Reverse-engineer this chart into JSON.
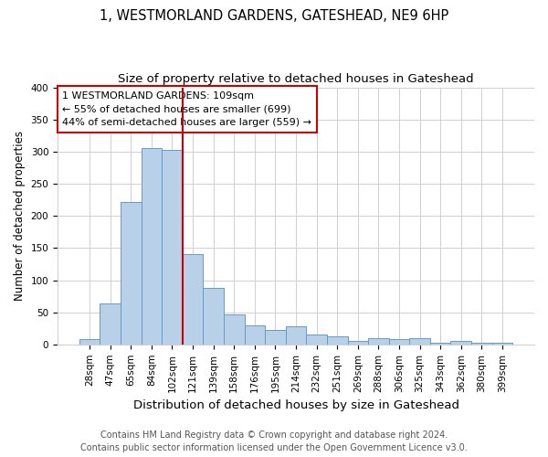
{
  "title": "1, WESTMORLAND GARDENS, GATESHEAD, NE9 6HP",
  "subtitle": "Size of property relative to detached houses in Gateshead",
  "xlabel": "Distribution of detached houses by size in Gateshead",
  "ylabel": "Number of detached properties",
  "bar_labels": [
    "28sqm",
    "47sqm",
    "65sqm",
    "84sqm",
    "102sqm",
    "121sqm",
    "139sqm",
    "158sqm",
    "176sqm",
    "195sqm",
    "214sqm",
    "232sqm",
    "251sqm",
    "269sqm",
    "288sqm",
    "306sqm",
    "325sqm",
    "343sqm",
    "362sqm",
    "380sqm",
    "399sqm"
  ],
  "bar_values": [
    8,
    64,
    222,
    305,
    302,
    140,
    88,
    46,
    30,
    23,
    28,
    16,
    13,
    5,
    10,
    8,
    10,
    3,
    5,
    3,
    3
  ],
  "bar_color": "#b8d0e8",
  "bar_edge_color": "#6699cc",
  "vline_x_index": 4,
  "vline_color": "#cc0000",
  "annotation_line1": "1 WESTMORLAND GARDENS: 109sqm",
  "annotation_line2": "← 55% of detached houses are smaller (699)",
  "annotation_line3": "44% of semi-detached houses are larger (559) →",
  "annotation_box_color": "#ffffff",
  "annotation_box_edge_color": "#cc0000",
  "ylim": [
    0,
    400
  ],
  "yticks": [
    0,
    50,
    100,
    150,
    200,
    250,
    300,
    350,
    400
  ],
  "footer_line1": "Contains HM Land Registry data © Crown copyright and database right 2024.",
  "footer_line2": "Contains public sector information licensed under the Open Government Licence v3.0.",
  "bg_color": "#ffffff",
  "grid_color": "#d0d0d0",
  "title_fontsize": 10.5,
  "subtitle_fontsize": 9.5,
  "xlabel_fontsize": 9.5,
  "ylabel_fontsize": 8.5,
  "tick_fontsize": 7.5,
  "annotation_fontsize": 8,
  "footer_fontsize": 7
}
